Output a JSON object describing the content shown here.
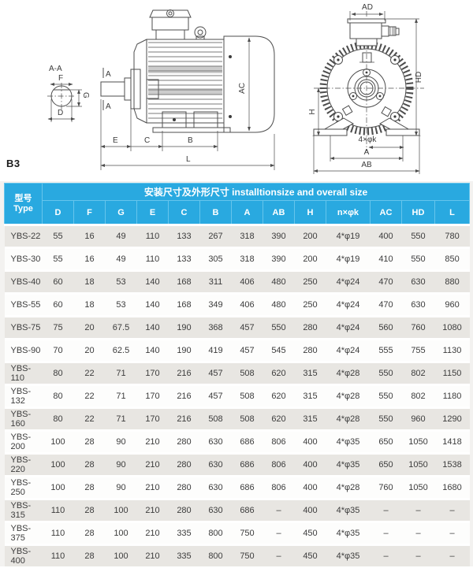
{
  "page": {
    "mount_code": "B3"
  },
  "colors": {
    "header_blue": "#29a9e0",
    "row_stripe": "#e8e6e2",
    "row_plain": "#fdfdfc",
    "drawing_stroke": "#4d4d4d"
  },
  "drawing": {
    "section_view": {
      "title": "A-A",
      "f": "F",
      "g": "G",
      "d": "D"
    },
    "side_view": {
      "a_top": "A",
      "a_bottom": "A",
      "e": "E",
      "c": "C",
      "b": "B",
      "l": "L",
      "ac": "AC"
    },
    "front_view": {
      "ad": "AD",
      "hd": "HD",
      "h": "H",
      "holes": "4×φk",
      "a": "A",
      "ab": "AB"
    }
  },
  "table": {
    "header": {
      "type_cn": "型号",
      "type_en": "Type",
      "span_title": "安装尺寸及外形尺寸 installtionsize and overall size",
      "columns": [
        "D",
        "F",
        "G",
        "E",
        "C",
        "B",
        "A",
        "AB",
        "H",
        "n×φk",
        "AC",
        "HD",
        "L"
      ]
    },
    "rows": [
      {
        "type": "YBS-22",
        "values": [
          "55",
          "16",
          "49",
          "110",
          "133",
          "267",
          "318",
          "390",
          "200",
          "4*φ19",
          "400",
          "550",
          "780"
        ]
      },
      {
        "type": "YBS-30",
        "values": [
          "55",
          "16",
          "49",
          "110",
          "133",
          "305",
          "318",
          "390",
          "200",
          "4*φ19",
          "410",
          "550",
          "850"
        ]
      },
      {
        "type": "YBS-40",
        "values": [
          "60",
          "18",
          "53",
          "140",
          "168",
          "311",
          "406",
          "480",
          "250",
          "4*φ24",
          "470",
          "630",
          "880"
        ]
      },
      {
        "type": "YBS-55",
        "values": [
          "60",
          "18",
          "53",
          "140",
          "168",
          "349",
          "406",
          "480",
          "250",
          "4*φ24",
          "470",
          "630",
          "960"
        ]
      },
      {
        "type": "YBS-75",
        "values": [
          "75",
          "20",
          "67.5",
          "140",
          "190",
          "368",
          "457",
          "550",
          "280",
          "4*φ24",
          "560",
          "760",
          "1080"
        ]
      },
      {
        "type": "YBS-90",
        "values": [
          "70",
          "20",
          "62.5",
          "140",
          "190",
          "419",
          "457",
          "545",
          "280",
          "4*φ24",
          "555",
          "755",
          "1130"
        ]
      },
      {
        "type": "YBS-110",
        "values": [
          "80",
          "22",
          "71",
          "170",
          "216",
          "457",
          "508",
          "620",
          "315",
          "4*φ28",
          "550",
          "802",
          "1150"
        ]
      },
      {
        "type": "YBS-132",
        "values": [
          "80",
          "22",
          "71",
          "170",
          "216",
          "457",
          "508",
          "620",
          "315",
          "4*φ28",
          "550",
          "802",
          "1180"
        ]
      },
      {
        "type": "YBS-160",
        "values": [
          "80",
          "22",
          "71",
          "170",
          "216",
          "508",
          "508",
          "620",
          "315",
          "4*φ28",
          "550",
          "960",
          "1290"
        ]
      },
      {
        "type": "YBS-200",
        "values": [
          "100",
          "28",
          "90",
          "210",
          "280",
          "630",
          "686",
          "806",
          "400",
          "4*φ35",
          "650",
          "1050",
          "1418"
        ]
      },
      {
        "type": "YBS-220",
        "values": [
          "100",
          "28",
          "90",
          "210",
          "280",
          "630",
          "686",
          "806",
          "400",
          "4*φ35",
          "650",
          "1050",
          "1538"
        ]
      },
      {
        "type": "YBS-250",
        "values": [
          "100",
          "28",
          "90",
          "210",
          "280",
          "630",
          "686",
          "806",
          "400",
          "4*φ28",
          "760",
          "1050",
          "1680"
        ]
      },
      {
        "type": "YBS-315",
        "values": [
          "110",
          "28",
          "100",
          "210",
          "280",
          "630",
          "686",
          "–",
          "400",
          "4*φ35",
          "–",
          "–",
          "–"
        ]
      },
      {
        "type": "YBS-375",
        "values": [
          "110",
          "28",
          "100",
          "210",
          "335",
          "800",
          "750",
          "–",
          "450",
          "4*φ35",
          "–",
          "–",
          "–"
        ]
      },
      {
        "type": "YBS-400",
        "values": [
          "110",
          "28",
          "100",
          "210",
          "335",
          "800",
          "750",
          "–",
          "450",
          "4*φ35",
          "–",
          "–",
          "–"
        ]
      }
    ]
  }
}
